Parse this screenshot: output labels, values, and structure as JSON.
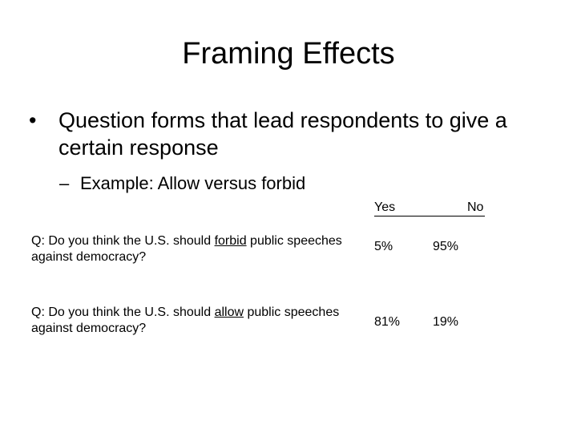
{
  "slide": {
    "title": "Framing Effects",
    "bullet": {
      "marker": "•",
      "text": "Question forms that lead respondents to give a certain response"
    },
    "sub_bullet": {
      "marker": "–",
      "text": "Example: Allow versus forbid"
    }
  },
  "table": {
    "headers": {
      "yes": "Yes",
      "no": "No"
    },
    "rows": [
      {
        "question_before": "Q: Do you think the U.S. should ",
        "keyword": "forbid",
        "question_after": " public speeches against democracy?",
        "yes": "5%",
        "no": "95%"
      },
      {
        "question_before": "Q: Do you think the U.S. should ",
        "keyword": "allow",
        "question_after": " public speeches against democracy?",
        "yes": "81%",
        "no": "19%"
      }
    ]
  }
}
